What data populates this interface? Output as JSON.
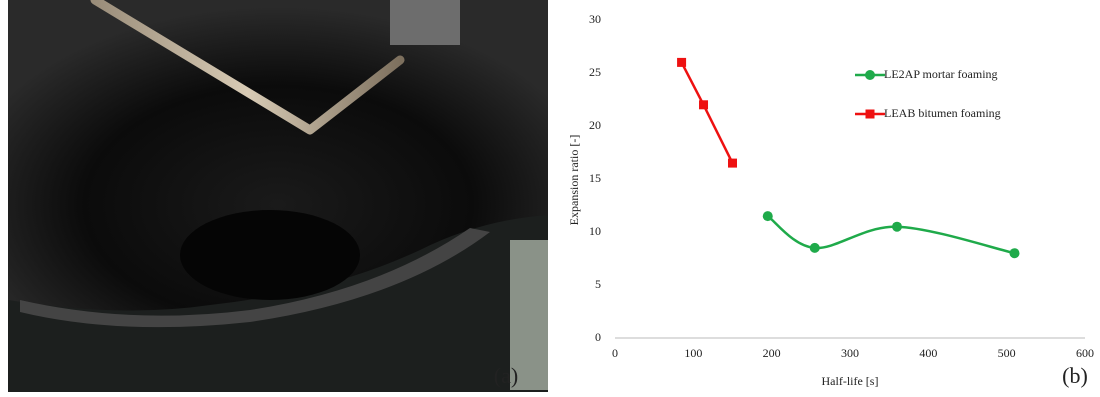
{
  "panel_labels": [
    "(a)",
    "(b)"
  ],
  "chart_data": {
    "type": "line",
    "xlabel": "Half-life [s]",
    "ylabel": "Expansion ratio [-]",
    "xlim": [
      0,
      600
    ],
    "xticks": [
      0,
      100,
      200,
      300,
      400,
      500,
      600
    ],
    "ylim": [
      0,
      30
    ],
    "yticks": [
      0,
      5,
      10,
      15,
      20,
      25,
      30
    ],
    "grid": false,
    "legend": "upper right",
    "series": [
      {
        "name": "LE2AP mortar foaming",
        "color": "#1faa4a",
        "marker": "circle",
        "smooth": true,
        "x": [
          195,
          255,
          360,
          510
        ],
        "values": [
          11.5,
          8.5,
          10.5,
          8
        ]
      },
      {
        "name": "LEAB bitumen foaming",
        "color": "#ee1111",
        "marker": "square",
        "smooth": false,
        "x": [
          85,
          113,
          150
        ],
        "values": [
          26,
          22,
          16.5
        ]
      }
    ]
  }
}
